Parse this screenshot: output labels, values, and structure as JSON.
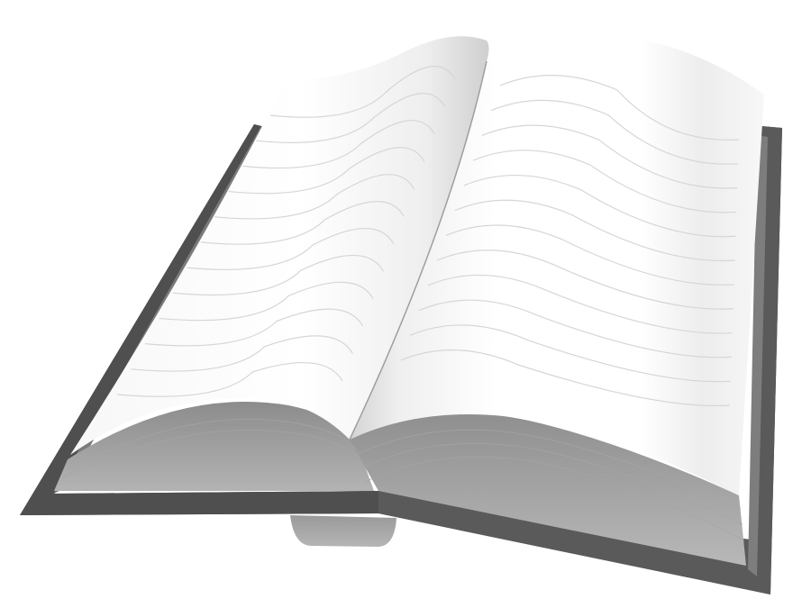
{
  "scene": {
    "subject": "open-book-icon",
    "colors": {
      "background": "#ffffff",
      "cover_dark": "#4a4a4a",
      "cover_mid": "#6a6a6a",
      "cover_edge": "#8a8a8a",
      "page_stack": "#9a9a9a",
      "page_stack_light": "#b8b8b8",
      "page_white": "#ffffff",
      "page_shade": "#d9d9d9",
      "line_color": "#d0d0d0",
      "spine_bottom": "#a5a5a5"
    },
    "left_page_line_count": 12,
    "right_page_line_count": 12
  }
}
